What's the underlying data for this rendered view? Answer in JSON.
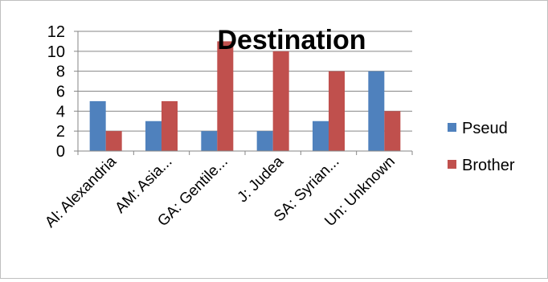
{
  "chart_data": {
    "type": "bar",
    "title": "Destination",
    "xlabel": "",
    "ylabel": "",
    "categories": [
      "Al: Alexandria",
      "AM: Asia...",
      "GA: Gentile...",
      "J: Judea",
      "SA: Syrian...",
      "Un: Unknown"
    ],
    "series": [
      {
        "name": "Pseud",
        "values": [
          5,
          3,
          2,
          2,
          3,
          8
        ],
        "color": "#4f81bd"
      },
      {
        "name": "Brother",
        "values": [
          2,
          5,
          11,
          10,
          8,
          4
        ],
        "color": "#c0504d"
      }
    ],
    "ylim": [
      0,
      12
    ],
    "yticks": [
      "0",
      "2",
      "4",
      "6",
      "8",
      "10",
      "12"
    ],
    "grid": true,
    "legend_position": "right"
  }
}
